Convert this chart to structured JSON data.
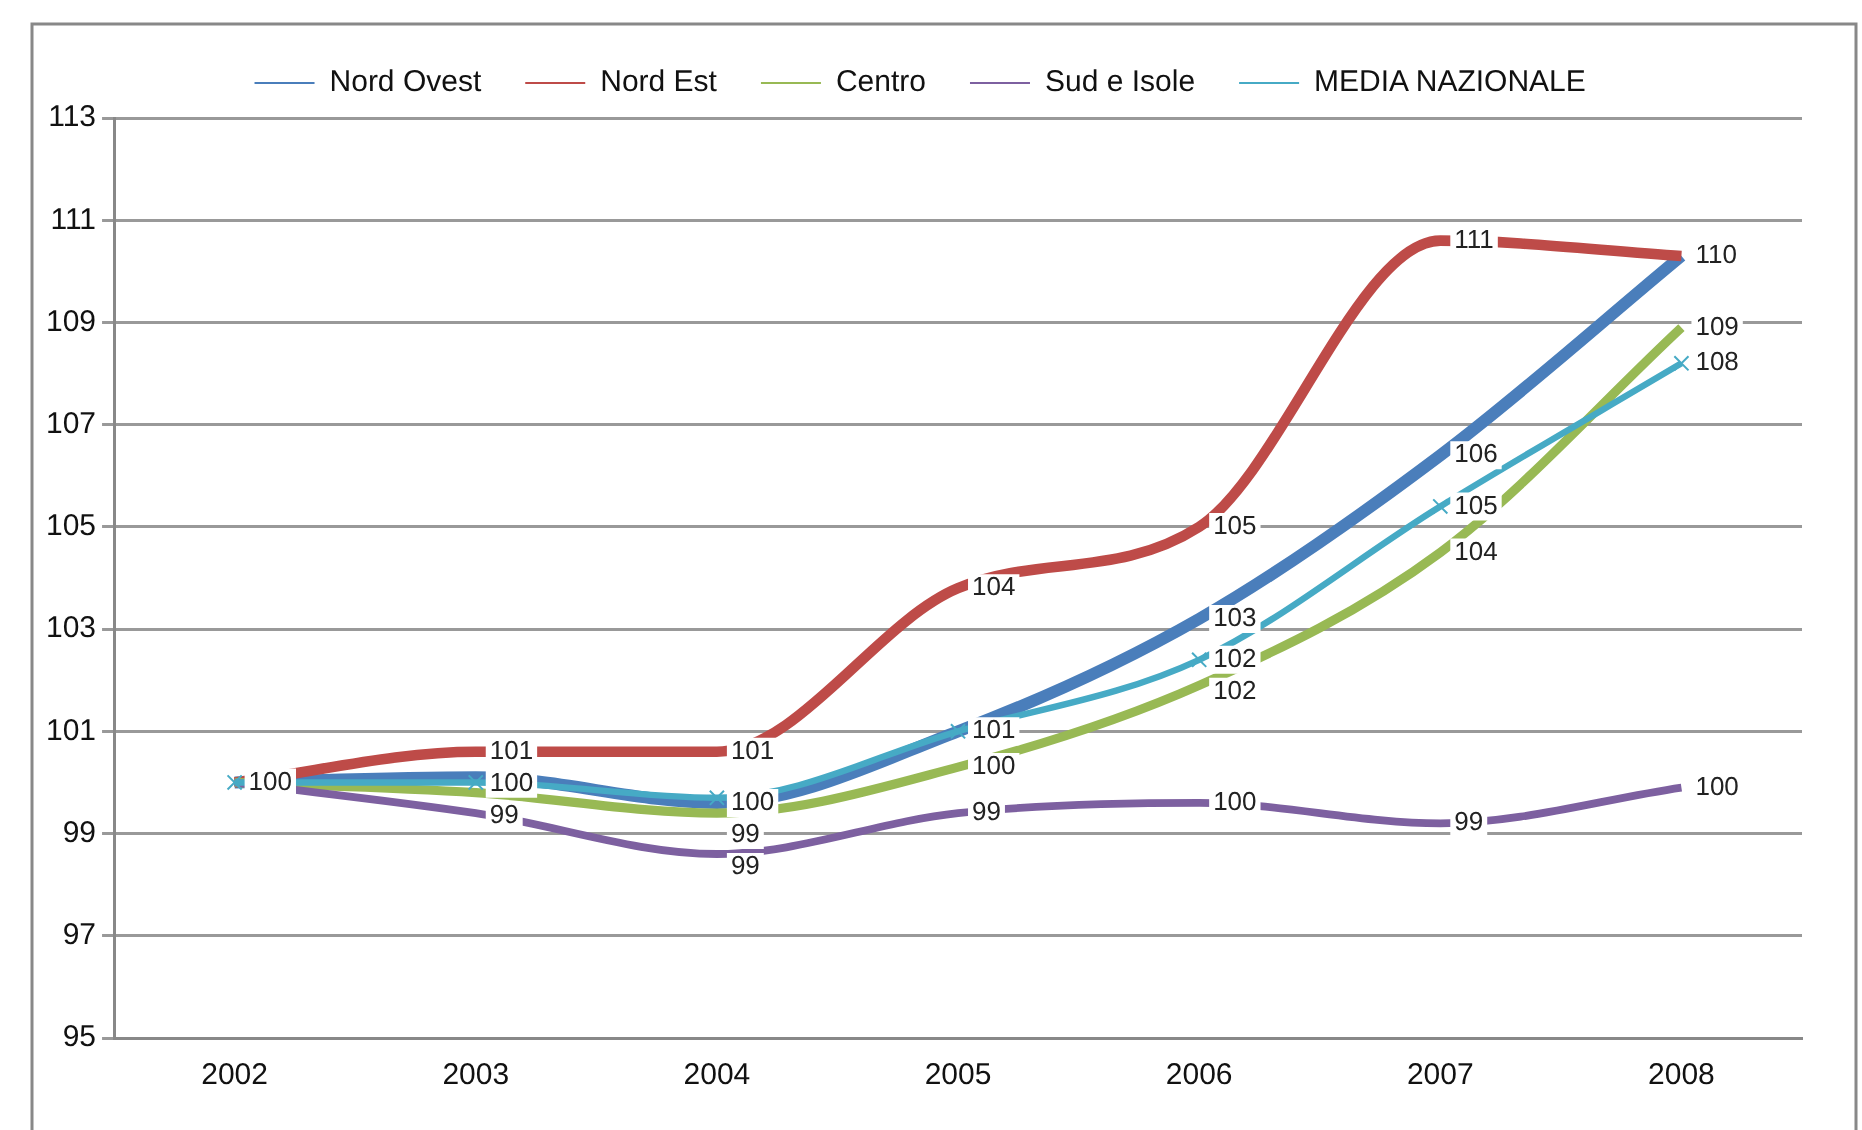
{
  "chart_data": {
    "type": "line",
    "categories": [
      "2002",
      "2003",
      "2004",
      "2005",
      "2006",
      "2007",
      "2008"
    ],
    "series": [
      {
        "name": "Nord Ovest",
        "color": "#4a7ebb",
        "values": [
          100,
          100.1,
          99.6,
          101.0,
          103.2,
          106.4,
          110.3
        ],
        "value_labels": [
          "100",
          null,
          "100",
          "101",
          "103",
          "106",
          null
        ]
      },
      {
        "name": "Nord Est",
        "color": "#be4b48",
        "values": [
          100,
          100.6,
          100.6,
          103.8,
          105.0,
          110.6,
          110.3
        ],
        "value_labels": [
          null,
          "101",
          "101",
          "104",
          "105",
          "111",
          "110"
        ]
      },
      {
        "name": "Centro",
        "color": "#98b954",
        "values": [
          100,
          99.8,
          99.4,
          100.3,
          101.9,
          104.5,
          108.9
        ],
        "value_labels": [
          null,
          null,
          "99",
          "100",
          "102",
          "104",
          "109"
        ]
      },
      {
        "name": "Sud e Isole",
        "color": "#7d60a0",
        "values": [
          100,
          99.4,
          98.6,
          99.4,
          99.6,
          99.2,
          99.9
        ],
        "value_labels": [
          null,
          "99",
          "99",
          "99",
          "100",
          "99",
          "100"
        ]
      },
      {
        "name": "MEDIA NAZIONALE",
        "color": "#46aac5",
        "marker": "cross",
        "values": [
          100,
          100.0,
          99.7,
          101.0,
          102.4,
          105.4,
          108.2
        ],
        "value_labels": [
          null,
          "100",
          null,
          null,
          "102",
          "105",
          "108"
        ]
      }
    ],
    "ylim": [
      95,
      113
    ],
    "yticks": [
      95,
      97,
      99,
      101,
      103,
      105,
      107,
      109,
      111,
      113
    ],
    "grid": "y",
    "legend": "top",
    "marker": "none"
  }
}
